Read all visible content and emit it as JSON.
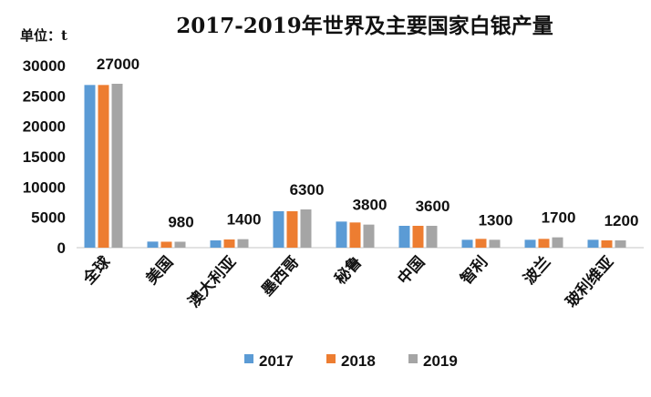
{
  "chart_data": {
    "type": "bar",
    "title": "2017-2019年世界及主要国家白银产量",
    "unit_label": "单位：t",
    "categories": [
      "全球",
      "美国",
      "澳大利亚",
      "墨西哥",
      "秘鲁",
      "中国",
      "智利",
      "波兰",
      "玻利维亚"
    ],
    "series": [
      {
        "name": "2017",
        "color": "#5B9BD5",
        "values": [
          26800,
          1000,
          1200,
          6000,
          4300,
          3600,
          1300,
          1300,
          1300
        ]
      },
      {
        "name": "2018",
        "color": "#ED7D31",
        "values": [
          26800,
          980,
          1350,
          6000,
          4150,
          3600,
          1450,
          1450,
          1200
        ]
      },
      {
        "name": "2019",
        "color": "#A5A5A5",
        "values": [
          27000,
          980,
          1400,
          6300,
          3800,
          3600,
          1300,
          1700,
          1200
        ]
      }
    ],
    "data_labels": [
      "27000",
      "980",
      "1400",
      "6300",
      "3800",
      "3600",
      "1300",
      "1700",
      "1200"
    ],
    "yticks": [
      "0",
      "5000",
      "10000",
      "15000",
      "20000",
      "25000",
      "30000"
    ],
    "ylim": [
      0,
      30000
    ],
    "grid": false,
    "legend_placement": "bottom"
  }
}
